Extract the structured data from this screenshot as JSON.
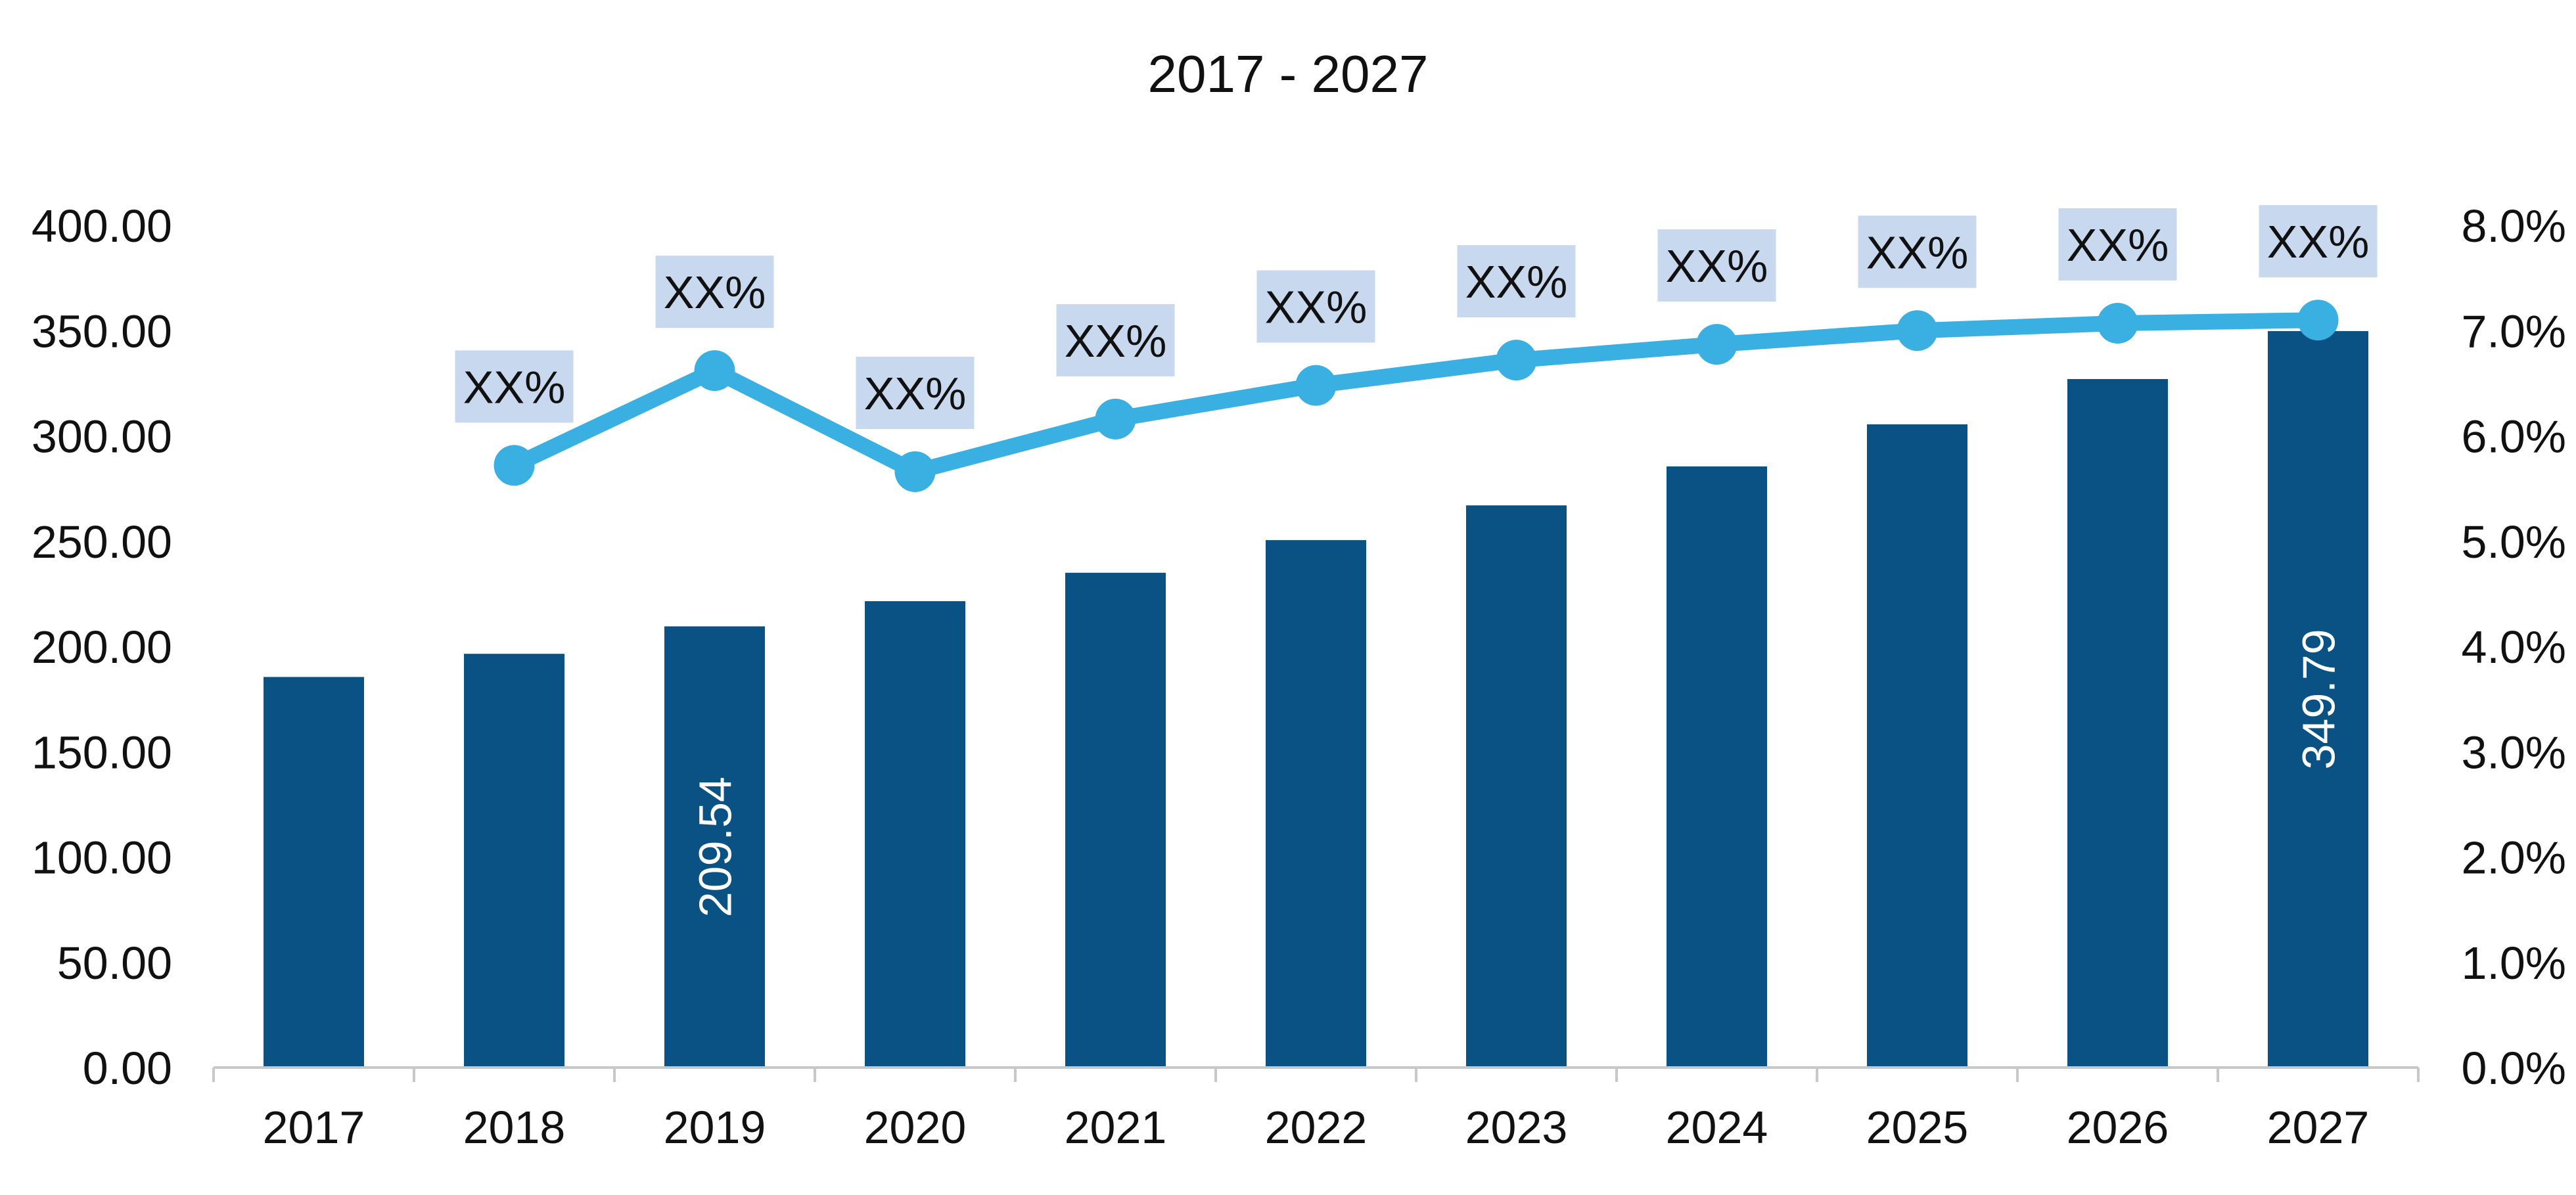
{
  "chart_data": {
    "type": "bar",
    "title": "2017 - 2027",
    "categories": [
      "2017",
      "2018",
      "2019",
      "2020",
      "2021",
      "2022",
      "2023",
      "2024",
      "2025",
      "2026",
      "2027"
    ],
    "series": [
      {
        "type": "bar",
        "axis": "left",
        "values": [
          185.5,
          196.5,
          209.54,
          221.5,
          235.0,
          250.5,
          267.0,
          285.5,
          305.5,
          327.0,
          349.79
        ],
        "shown_value_labels": {
          "2019": "209.54",
          "2027": "349.79"
        }
      },
      {
        "type": "line",
        "axis": "right",
        "values": [
          null,
          5.72,
          6.62,
          5.66,
          6.16,
          6.48,
          6.72,
          6.87,
          7.0,
          7.07,
          7.1
        ],
        "point_label": "XX%"
      }
    ],
    "y_left": {
      "min": 0,
      "max": 400,
      "ticks": [
        "0.00",
        "50.00",
        "100.00",
        "150.00",
        "200.00",
        "250.00",
        "300.00",
        "350.00",
        "400.00"
      ]
    },
    "y_right": {
      "min": 0,
      "max": 8,
      "ticks": [
        "0.0%",
        "1.0%",
        "2.0%",
        "3.0%",
        "4.0%",
        "5.0%",
        "6.0%",
        "7.0%",
        "8.0%"
      ]
    },
    "grid": false,
    "legend": "none",
    "colors": {
      "bar": "#0a5283",
      "line": "#3ab0e2",
      "label_box": "#c7d8ef",
      "axis": "#c8c8c8"
    }
  }
}
